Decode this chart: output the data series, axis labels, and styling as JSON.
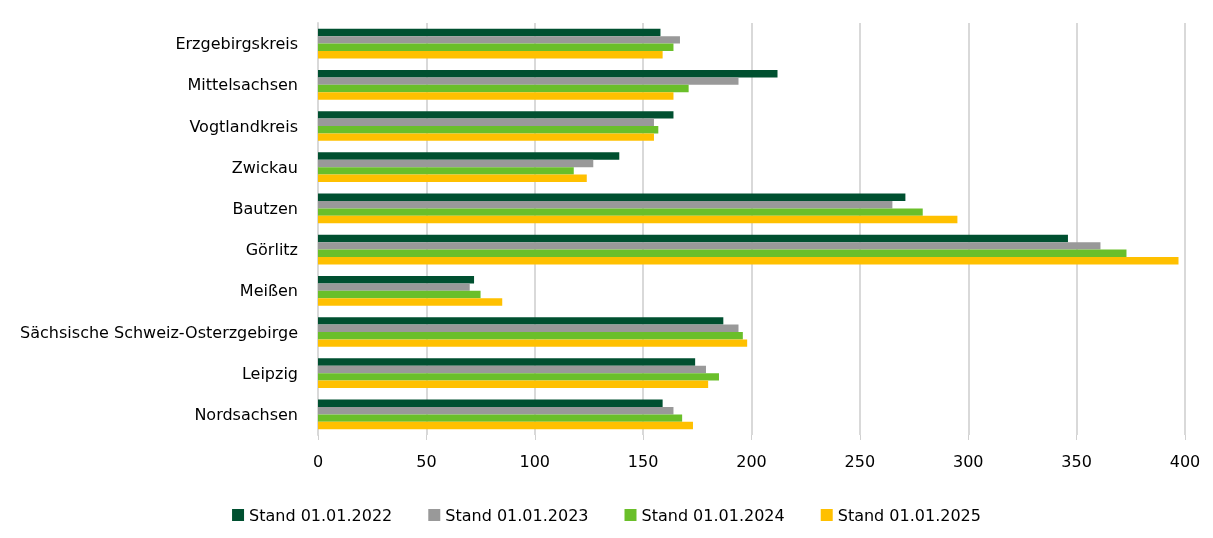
{
  "chart_data": {
    "type": "bar",
    "orientation": "horizontal",
    "categories": [
      "Erzgebirgskreis",
      "Mittelsachsen",
      "Vogtlandkreis",
      "Zwickau",
      "Bautzen",
      "Görlitz",
      "Meißen",
      "Sächsische Schweiz-Osterzgebirge",
      "Leipzig",
      "Nordsachsen"
    ],
    "series": [
      {
        "name": "Stand 01.01.2022",
        "color": "#005030",
        "values": [
          158,
          212,
          164,
          139,
          271,
          346,
          72,
          187,
          174,
          159
        ]
      },
      {
        "name": "Stand 01.01.2023",
        "color": "#999999",
        "values": [
          167,
          194,
          155,
          127,
          265,
          361,
          70,
          194,
          179,
          164
        ]
      },
      {
        "name": "Stand 01.01.2024",
        "color": "#6abf2a",
        "values": [
          164,
          171,
          157,
          118,
          279,
          373,
          75,
          196,
          185,
          168
        ]
      },
      {
        "name": "Stand 01.01.2025",
        "color": "#ffc000",
        "values": [
          159,
          164,
          155,
          124,
          295,
          397,
          85,
          198,
          180,
          173
        ]
      }
    ],
    "xlim": [
      0,
      400
    ],
    "xticks": [
      0,
      50,
      100,
      150,
      200,
      250,
      300,
      350,
      400
    ],
    "grid": "x",
    "legend": "bottom"
  }
}
